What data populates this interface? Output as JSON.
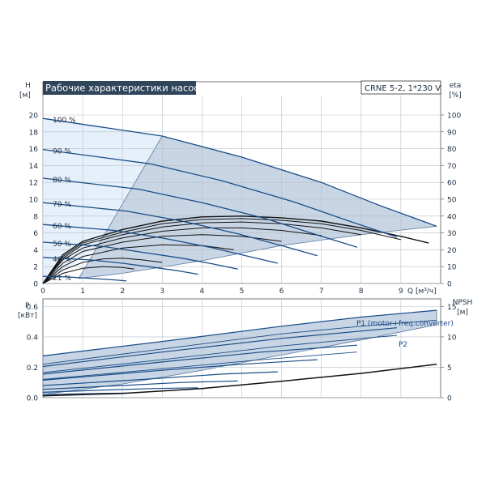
{
  "title": "Рабочие характеристики насоса",
  "model": "CRNE 5-2, 1*230 V",
  "colors": {
    "curve": "#1a4d88",
    "curve_dark": "#111111",
    "band_fill": "#c8d5e4",
    "band_stroke": "#5b7aa0",
    "light_fill": "#e6f0fa",
    "grid": "#b9c0c8",
    "title_bg": "#2f455b",
    "p1_label": "#1a4d88"
  },
  "chart_data": [
    {
      "type": "line",
      "name": "head",
      "y_left": {
        "label_line1": "H",
        "label_line2": "[м]",
        "range": [
          0,
          20
        ],
        "ticks": [
          "0",
          "2",
          "4",
          "6",
          "8",
          "10",
          "12",
          "14",
          "16",
          "18",
          "20"
        ]
      },
      "y_right": {
        "label_line1": "eta",
        "label_line2": "[%]",
        "range": [
          0,
          100
        ],
        "ticks": [
          "0",
          "10",
          "20",
          "30",
          "40",
          "50",
          "60",
          "70",
          "80",
          "90",
          "100"
        ]
      },
      "x": {
        "label": "Q [м³/ч]",
        "range": [
          0,
          10
        ],
        "ticks": [
          "0",
          "1",
          "2",
          "3",
          "4",
          "5",
          "6",
          "7",
          "8",
          "9"
        ]
      },
      "grid": true,
      "speed_curves": [
        {
          "label": "100 %",
          "points": [
            [
              0,
              19.6
            ],
            [
              3,
              17.5
            ],
            [
              5,
              15.0
            ],
            [
              7,
              12.0
            ],
            [
              8.5,
              9.2
            ],
            [
              9.9,
              6.8
            ]
          ]
        },
        {
          "label": "90 %",
          "points": [
            [
              0,
              15.9
            ],
            [
              2.7,
              14.2
            ],
            [
              4.5,
              12.2
            ],
            [
              6.3,
              9.7
            ],
            [
              7.7,
              7.4
            ],
            [
              8.9,
              5.5
            ]
          ]
        },
        {
          "label": "80 %",
          "points": [
            [
              0,
              12.5
            ],
            [
              2.4,
              11.2
            ],
            [
              4,
              9.6
            ],
            [
              5.6,
              7.7
            ],
            [
              6.8,
              5.9
            ],
            [
              7.9,
              4.3
            ]
          ]
        },
        {
          "label": "70 %",
          "points": [
            [
              0,
              9.6
            ],
            [
              2.1,
              8.6
            ],
            [
              3.5,
              7.4
            ],
            [
              4.9,
              5.9
            ],
            [
              6,
              4.5
            ],
            [
              6.9,
              3.3
            ]
          ]
        },
        {
          "label": "60 %",
          "points": [
            [
              0,
              7.0
            ],
            [
              1.8,
              6.3
            ],
            [
              3,
              5.4
            ],
            [
              4.2,
              4.3
            ],
            [
              5.1,
              3.3
            ],
            [
              5.9,
              2.4
            ]
          ]
        },
        {
          "label": "50 %",
          "points": [
            [
              0,
              4.9
            ],
            [
              1.5,
              4.4
            ],
            [
              2.5,
              3.7
            ],
            [
              3.5,
              3.0
            ],
            [
              4.3,
              2.3
            ],
            [
              4.9,
              1.7
            ]
          ]
        },
        {
          "label": "40 %",
          "points": [
            [
              0,
              3.1
            ],
            [
              1.2,
              2.8
            ],
            [
              2,
              2.4
            ],
            [
              2.8,
              1.9
            ],
            [
              3.4,
              1.5
            ],
            [
              3.9,
              1.1
            ]
          ]
        },
        {
          "label": "21 %",
          "points": [
            [
              0,
              0.85
            ],
            [
              0.6,
              0.78
            ],
            [
              1,
              0.66
            ],
            [
              1.5,
              0.52
            ],
            [
              1.8,
              0.42
            ],
            [
              2.1,
              0.3
            ]
          ]
        }
      ],
      "eta_curves": [
        {
          "points": [
            [
              0,
              0
            ],
            [
              0.5,
              17
            ],
            [
              1,
              25
            ],
            [
              2,
              32
            ],
            [
              3,
              37
            ],
            [
              4,
              39.5
            ],
            [
              5,
              40
            ],
            [
              6,
              39
            ],
            [
              7,
              37
            ],
            [
              8,
              33
            ],
            [
              9,
              28
            ],
            [
              9.7,
              24
            ]
          ]
        },
        {
          "points": [
            [
              0,
              0
            ],
            [
              0.5,
              16
            ],
            [
              1,
              24
            ],
            [
              2,
              30.5
            ],
            [
              3,
              35.5
            ],
            [
              4,
              38
            ],
            [
              5,
              38.5
            ],
            [
              6,
              37.5
            ],
            [
              7,
              35.5
            ],
            [
              8,
              31.5
            ],
            [
              9,
              26
            ]
          ]
        },
        {
          "points": [
            [
              0,
              0
            ],
            [
              0.5,
              15
            ],
            [
              1,
              23
            ],
            [
              2,
              29
            ],
            [
              3,
              33.5
            ],
            [
              4,
              36
            ],
            [
              5,
              36.5
            ],
            [
              6,
              35.5
            ],
            [
              7,
              33
            ],
            [
              8,
              29
            ]
          ]
        },
        {
          "points": [
            [
              0,
              0
            ],
            [
              0.5,
              14
            ],
            [
              1,
              21
            ],
            [
              2,
              27
            ],
            [
              3,
              31
            ],
            [
              4,
              33
            ],
            [
              5,
              33
            ],
            [
              6,
              31.5
            ],
            [
              7,
              28.5
            ]
          ]
        },
        {
          "points": [
            [
              0,
              0
            ],
            [
              0.5,
              12
            ],
            [
              1,
              19
            ],
            [
              2,
              24.5
            ],
            [
              3,
              28
            ],
            [
              4,
              29
            ],
            [
              5,
              28
            ],
            [
              6,
              25
            ]
          ]
        },
        {
          "points": [
            [
              0,
              0
            ],
            [
              0.5,
              10
            ],
            [
              1,
              16
            ],
            [
              2,
              21
            ],
            [
              3,
              23
            ],
            [
              4,
              22.5
            ],
            [
              4.8,
              20
            ]
          ]
        },
        {
          "points": [
            [
              0,
              0
            ],
            [
              0.5,
              8
            ],
            [
              1,
              12.5
            ],
            [
              1.5,
              14.5
            ],
            [
              2,
              15
            ],
            [
              2.5,
              14
            ],
            [
              3,
              12.5
            ]
          ]
        },
        {
          "points": [
            [
              0,
              0
            ],
            [
              0.5,
              6
            ],
            [
              1,
              9
            ],
            [
              1.5,
              10
            ],
            [
              2,
              9.5
            ],
            [
              2.3,
              8.5
            ]
          ]
        }
      ]
    },
    {
      "type": "line",
      "name": "power",
      "y_left": {
        "label_line1": "P",
        "label_line2": "[кВт]",
        "range": [
          0,
          0.65
        ],
        "ticks": [
          "0.0",
          "0.2",
          "0.4",
          "0.6"
        ]
      },
      "y_right": {
        "label_line1": "NPSH",
        "label_line2": "[м]",
        "range": [
          0,
          16.25
        ],
        "ticks": [
          "0",
          "5",
          "10",
          "15"
        ]
      },
      "x": {
        "range": [
          0,
          10
        ]
      },
      "grid": true,
      "series_labels": [
        "P1 (motor+freq.converter)",
        "P2"
      ],
      "p1_curves": [
        {
          "points": [
            [
              0,
              0.275
            ],
            [
              3,
              0.37
            ],
            [
              6,
              0.47
            ],
            [
              8,
              0.53
            ],
            [
              9.9,
              0.575
            ]
          ]
        },
        {
          "points": [
            [
              0,
              0.205
            ],
            [
              3,
              0.3
            ],
            [
              6,
              0.39
            ],
            [
              8.9,
              0.46
            ]
          ]
        },
        {
          "points": [
            [
              0,
              0.155
            ],
            [
              3,
              0.235
            ],
            [
              5.5,
              0.3
            ],
            [
              7.9,
              0.345
            ]
          ]
        },
        {
          "points": [
            [
              0,
              0.115
            ],
            [
              3,
              0.18
            ],
            [
              5,
              0.22
            ],
            [
              6.9,
              0.25
            ]
          ]
        },
        {
          "points": [
            [
              0,
              0.08
            ],
            [
              2.5,
              0.12
            ],
            [
              4.5,
              0.155
            ],
            [
              5.9,
              0.17
            ]
          ]
        },
        {
          "points": [
            [
              0,
              0.055
            ],
            [
              2,
              0.08
            ],
            [
              3.5,
              0.1
            ],
            [
              4.9,
              0.11
            ]
          ]
        },
        {
          "points": [
            [
              0,
              0.035
            ],
            [
              1.5,
              0.05
            ],
            [
              2.8,
              0.06
            ],
            [
              3.9,
              0.065
            ]
          ]
        },
        {
          "points": [
            [
              0,
              0.02
            ],
            [
              0.8,
              0.025
            ],
            [
              1.5,
              0.028
            ],
            [
              2.1,
              0.03
            ]
          ]
        }
      ],
      "p2_curves": [
        {
          "points": [
            [
              0,
              0.22
            ],
            [
              3,
              0.32
            ],
            [
              6,
              0.42
            ],
            [
              8,
              0.47
            ],
            [
              9.9,
              0.51
            ]
          ]
        },
        {
          "points": [
            [
              0,
              0.165
            ],
            [
              3,
              0.25
            ],
            [
              6,
              0.34
            ],
            [
              8.9,
              0.41
            ]
          ]
        },
        {
          "points": [
            [
              0,
              0.12
            ],
            [
              3,
              0.19
            ],
            [
              5.5,
              0.25
            ],
            [
              7.9,
              0.3
            ]
          ]
        }
      ],
      "npsh_curve": {
        "points": [
          [
            0,
            0.3
          ],
          [
            2,
            0.7
          ],
          [
            4,
            1.5
          ],
          [
            6,
            2.7
          ],
          [
            8,
            4.0
          ],
          [
            9.9,
            5.5
          ]
        ]
      }
    }
  ]
}
